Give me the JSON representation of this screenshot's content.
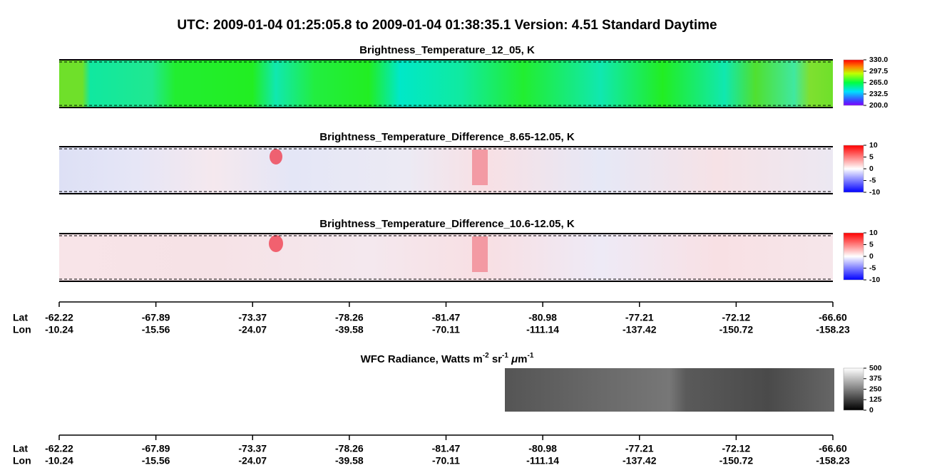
{
  "header": {
    "title": "UTC:  2009-01-04   01:25:05.8  to  2009-01-04   01:38:35.1    Version: 4.51  Standard Daytime"
  },
  "panels": [
    {
      "title_parts": [
        "Brightness_Temperature_12_05, K"
      ],
      "colorbar_ticks": [
        {
          "value": 330,
          "label": "330.0"
        },
        297.5,
        {
          "value": 265,
          "label": "265.0"
        },
        232.5,
        {
          "value": 200,
          "label": "200.0"
        }
      ]
    },
    {
      "title_parts": [
        "Brightness_Temperature_Difference_8.65-12.05, K"
      ],
      "colorbar_ticks": [
        10,
        5,
        0,
        -5,
        -10
      ]
    },
    {
      "title_parts": [
        "Brightness_Temperature_Difference_10.6-12.05, K"
      ],
      "colorbar_ticks": [
        10,
        5,
        0,
        -5,
        -10
      ]
    },
    {
      "title_parts": [
        "WFC Radiance, Watts m",
        "-2",
        " sr",
        "-1",
        " ",
        "μ",
        "m",
        "-1"
      ],
      "colorbar_ticks": [
        500,
        375,
        250,
        125,
        0
      ]
    }
  ],
  "axes": [
    {
      "row_labels": [
        "Lat",
        "Lon"
      ],
      "lat": [
        "-62.22",
        "-67.89",
        "-73.37",
        "-78.26",
        "-81.47",
        "-80.98",
        "-77.21",
        "-72.12",
        "-66.60"
      ],
      "lon": [
        "-10.24",
        "-15.56",
        "-24.07",
        "-39.58",
        "-70.11",
        "-111.14",
        "-137.42",
        "-150.72",
        "-158.23"
      ]
    },
    {
      "row_labels": [
        "Lat",
        "Lon"
      ],
      "lat": [
        "-62.22",
        "-67.89",
        "-73.37",
        "-78.26",
        "-81.47",
        "-80.98",
        "-77.21",
        "-72.12",
        "-66.60"
      ],
      "lon": [
        "-10.24",
        "-15.56",
        "-24.07",
        "-39.58",
        "-70.11",
        "-111.14",
        "-137.42",
        "-150.72",
        "-158.23"
      ]
    }
  ]
}
